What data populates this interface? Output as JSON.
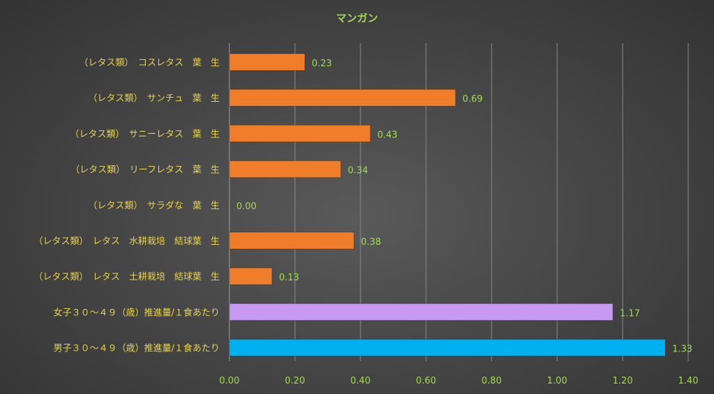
{
  "chart_data": {
    "type": "bar",
    "orientation": "horizontal",
    "title": "マンガン",
    "xlim": [
      0,
      1.4
    ],
    "x_ticks": [
      "0.00",
      "0.20",
      "0.40",
      "0.60",
      "0.80",
      "1.00",
      "1.20",
      "1.40"
    ],
    "grid": true,
    "categories": [
      "（レタス類）　コスレタス　葉　生",
      "（レタス類）　サンチュ　葉　生",
      "（レタス類）　サニーレタス　葉　生",
      "（レタス類）　リーフレタス　葉　生",
      "（レタス類）　サラダな　葉　生",
      "（レタス類）　レタス　水耕栽培　結球葉　生",
      "（レタス類）　レタス　土耕栽培　結球葉　生",
      "女子３０～４９（歳）推進量/１食あたり",
      "男子３０～４９（歳）推進量/１食あたり"
    ],
    "values": [
      0.23,
      0.69,
      0.43,
      0.34,
      0.0,
      0.38,
      0.13,
      1.17,
      1.33
    ],
    "value_labels": [
      "0.23",
      "0.69",
      "0.43",
      "0.34",
      "0.00",
      "0.38",
      "0.13",
      "1.17",
      "1.33"
    ],
    "bar_colors": [
      "#f07d2a",
      "#f07d2a",
      "#f07d2a",
      "#f07d2a",
      "#f07d2a",
      "#f07d2a",
      "#f07d2a",
      "#c79af2",
      "#00b0f0"
    ]
  }
}
